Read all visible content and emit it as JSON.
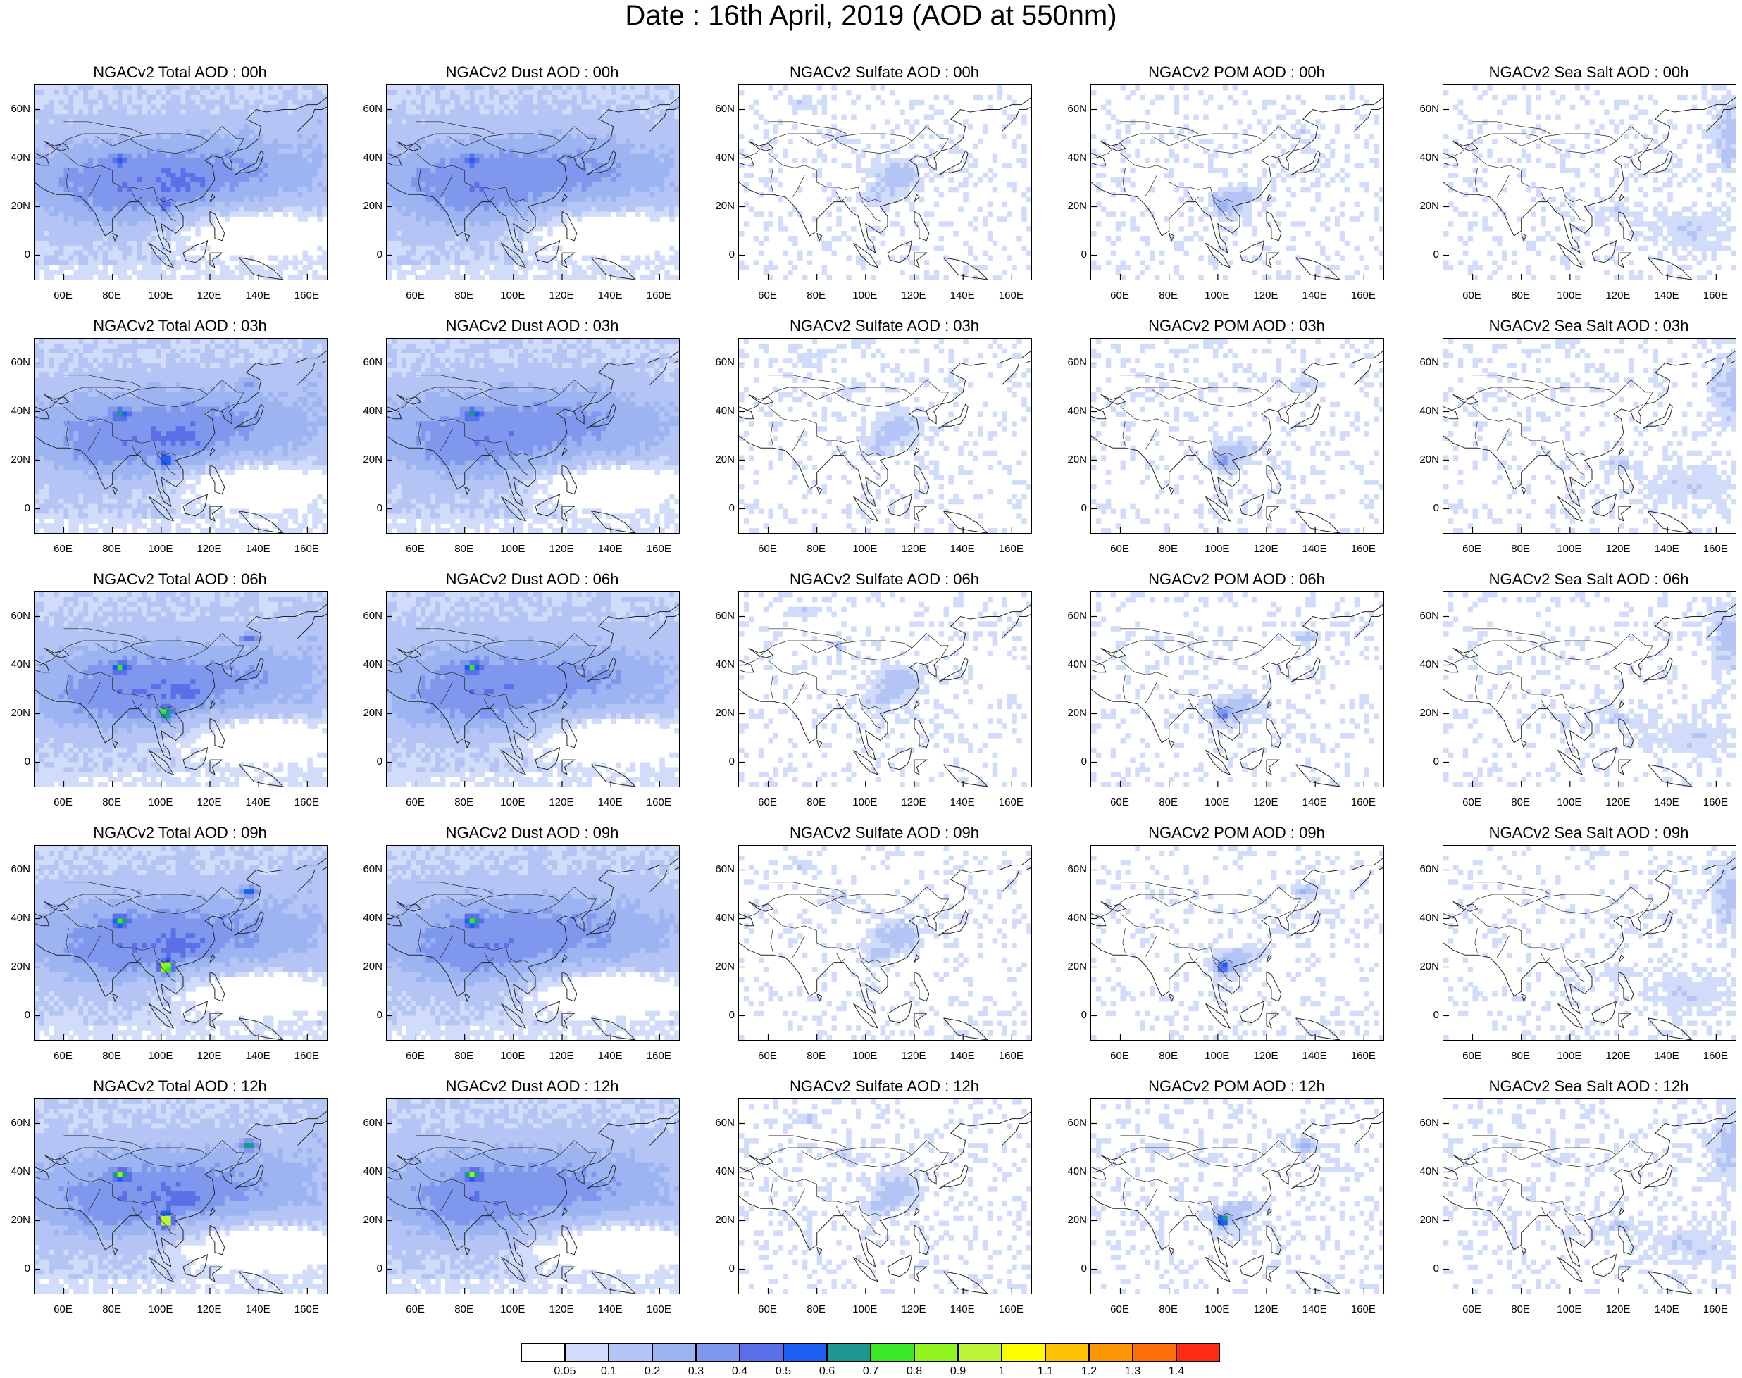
{
  "title": "Date : 16th April, 2019 (AOD at 550nm)",
  "panels": [
    [
      "NGACv2 Total AOD : 00h",
      "NGACv2 Dust AOD : 00h",
      "NGACv2 Sulfate AOD : 00h",
      "NGACv2 POM AOD : 00h",
      "NGACv2 Sea Salt AOD : 00h"
    ],
    [
      "NGACv2 Total AOD : 03h",
      "NGACv2 Dust AOD : 03h",
      "NGACv2 Sulfate AOD : 03h",
      "NGACv2 POM AOD : 03h",
      "NGACv2 Sea Salt AOD : 03h"
    ],
    [
      "NGACv2 Total AOD : 06h",
      "NGACv2 Dust AOD : 06h",
      "NGACv2 Sulfate AOD : 06h",
      "NGACv2 POM AOD : 06h",
      "NGACv2 Sea Salt AOD : 06h"
    ],
    [
      "NGACv2 Total AOD : 09h",
      "NGACv2 Dust AOD : 09h",
      "NGACv2 Sulfate AOD : 09h",
      "NGACv2 POM AOD : 09h",
      "NGACv2 Sea Salt  AOD : 09h"
    ],
    [
      "NGACv2 Total AOD  : 12h",
      "NGACv2 Dust AOD : 12h",
      "NGACv2 Sulfate AOD : 12h",
      "NGACv2 POM  AOD : 12h",
      "NGACv2 Sea Salt  AOD : 12h"
    ]
  ],
  "axes": {
    "x_ticks": [
      "60E",
      "80E",
      "100E",
      "120E",
      "140E",
      "160E"
    ],
    "x_values": [
      60,
      80,
      100,
      120,
      140,
      160
    ],
    "y_ticks": [
      "60N",
      "40N",
      "20N",
      "0"
    ],
    "y_values": [
      60,
      40,
      20,
      0
    ],
    "lon_range": [
      48,
      168
    ],
    "lat_range": [
      -10,
      70
    ]
  },
  "colorbar": {
    "labels": [
      "0.05",
      "0.1",
      "0.2",
      "0.3",
      "0.4",
      "0.5",
      "0.6",
      "0.7",
      "0.8",
      "0.9",
      "1",
      "1.1",
      "1.2",
      "1.3",
      "1.4"
    ],
    "colors": [
      "#ffffff",
      "#d0dcfa",
      "#b3c4f5",
      "#9db4f2",
      "#7f98ee",
      "#5a6fe8",
      "#1d5ff0",
      "#1e9790",
      "#39e827",
      "#90f41f",
      "#bef538",
      "#fefe00",
      "#fdc101",
      "#fc9504",
      "#fd6f09",
      "#fd2c12"
    ]
  },
  "chart_data": {
    "type": "heatmap",
    "variable": "AOD at 550nm",
    "rows_time": [
      "00h",
      "03h",
      "06h",
      "09h",
      "12h"
    ],
    "columns_species": [
      "Total",
      "Dust",
      "Sulfate",
      "POM",
      "Sea Salt"
    ],
    "lon_range": [
      48,
      168
    ],
    "lat_range": [
      -10,
      70
    ],
    "approx_fields": {
      "Total": {
        "background": 0.15,
        "peak_core": [
          [
            83,
            39,
            0.7
          ],
          [
            102,
            20,
            0.9
          ],
          [
            136,
            51,
            0.7
          ]
        ]
      },
      "Dust": {
        "background": 0.15,
        "peak_core": [
          [
            83,
            39,
            0.6
          ]
        ]
      },
      "Sulfate": {
        "background": 0.05,
        "peak_core": [
          [
            110,
            32,
            0.2
          ]
        ]
      },
      "POM": {
        "background": 0.05,
        "peak_core": [
          [
            102,
            20,
            0.8
          ],
          [
            136,
            51,
            0.3
          ]
        ]
      },
      "Sea Salt": {
        "background": 0.05,
        "peak_core": [
          [
            165,
            50,
            0.2
          ]
        ]
      }
    }
  }
}
